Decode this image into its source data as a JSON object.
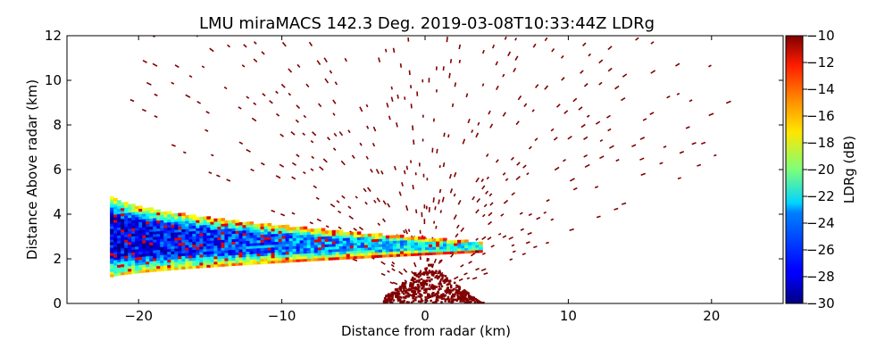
{
  "chart_data": {
    "type": "heatmap",
    "title": "LMU miraMACS 142.3 Deg. 2019-03-08T10:33:44Z  LDRg",
    "xlabel": "Distance from radar (km)",
    "ylabel": "Distance Above radar  (km)",
    "colorbar_label": "LDRg (dB)",
    "xlim": [
      -25,
      25
    ],
    "ylim": [
      0,
      12
    ],
    "clim": [
      -30,
      -10
    ],
    "colormap": "jet",
    "x_ticks": [
      -20,
      -10,
      0,
      10,
      20
    ],
    "x_tick_labels": [
      "−20",
      "−10",
      "0",
      "10",
      "20"
    ],
    "y_ticks": [
      0,
      2,
      4,
      6,
      8,
      10,
      12
    ],
    "y_tick_labels": [
      "0",
      "2",
      "4",
      "6",
      "8",
      "10",
      "12"
    ],
    "colorbar_ticks": [
      -30,
      -28,
      -26,
      -24,
      -22,
      -20,
      -18,
      -16,
      -14,
      -12,
      -10
    ],
    "colorbar_tick_labels": [
      "−30",
      "−28",
      "−26",
      "−24",
      "−22",
      "−20",
      "−18",
      "−16",
      "−14",
      "−12",
      "−10"
    ],
    "grid": false,
    "features": {
      "cloud_layer": {
        "x_range": [
          -22,
          4
        ],
        "height_at_x_min": [
          1.2,
          4.8
        ],
        "height_at_x_max": [
          2.3,
          2.7
        ],
        "ldr_core": -28,
        "ldr_edge": -12
      },
      "near_radar_clutter": {
        "x_range": [
          -3,
          4
        ],
        "height_max": 1.8,
        "ldr": -10
      },
      "noise_scan_range": {
        "angle_deg": [
          18,
          160
        ],
        "max_range_km": 23,
        "ldr": -10
      }
    }
  }
}
